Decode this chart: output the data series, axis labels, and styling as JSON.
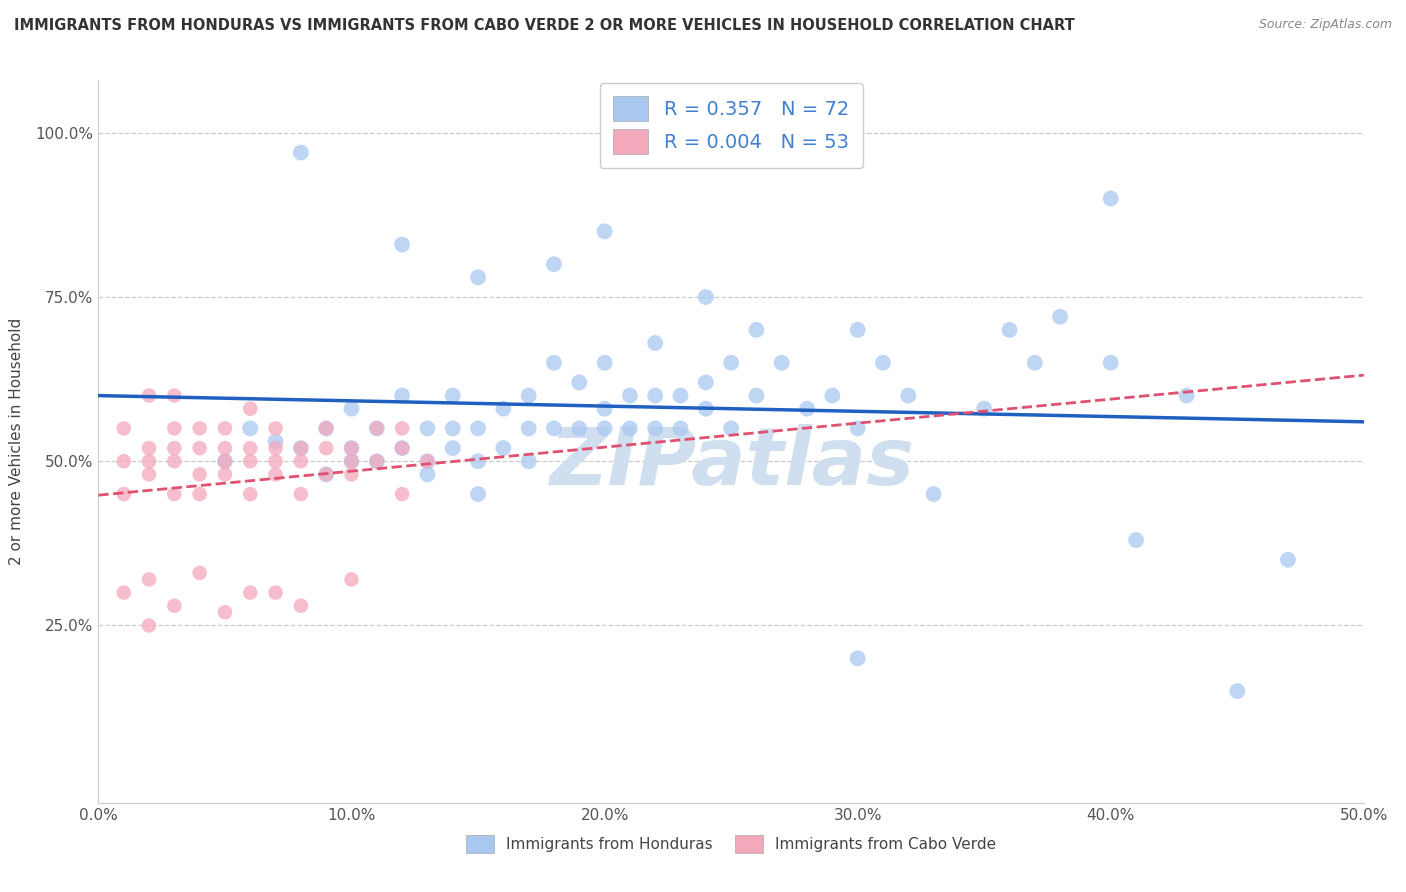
{
  "title": "IMMIGRANTS FROM HONDURAS VS IMMIGRANTS FROM CABO VERDE 2 OR MORE VEHICLES IN HOUSEHOLD CORRELATION CHART",
  "source": "Source: ZipAtlas.com",
  "ylabel": "2 or more Vehicles in Household",
  "xlabel_honduras": "Immigrants from Honduras",
  "xlabel_caboverde": "Immigrants from Cabo Verde",
  "xlim": [
    0.0,
    0.5
  ],
  "ylim": [
    -0.02,
    1.08
  ],
  "yticks": [
    0.0,
    0.25,
    0.5,
    0.75,
    1.0
  ],
  "ytick_labels": [
    "",
    "25.0%",
    "50.0%",
    "75.0%",
    "100.0%"
  ],
  "xticks": [
    0.0,
    0.1,
    0.2,
    0.3,
    0.4,
    0.5
  ],
  "xtick_labels": [
    "0.0%",
    "10.0%",
    "20.0%",
    "30.0%",
    "40.0%",
    "50.0%"
  ],
  "R_honduras": 0.357,
  "N_honduras": 72,
  "R_caboverde": 0.004,
  "N_caboverde": 53,
  "color_honduras": "#a8c8f0",
  "color_caboverde": "#f4a8bc",
  "line_color_honduras": "#2060c0",
  "line_color_caboverde": "#e05070",
  "watermark_text": "ZIPatlas",
  "watermark_color": "#d0dff0",
  "legend_text_color": "#4080d0",
  "title_color": "#333333",
  "source_color": "#888888",
  "grid_color": "#cccccc",
  "spine_color": "#cccccc",
  "tick_color": "#4080d0"
}
